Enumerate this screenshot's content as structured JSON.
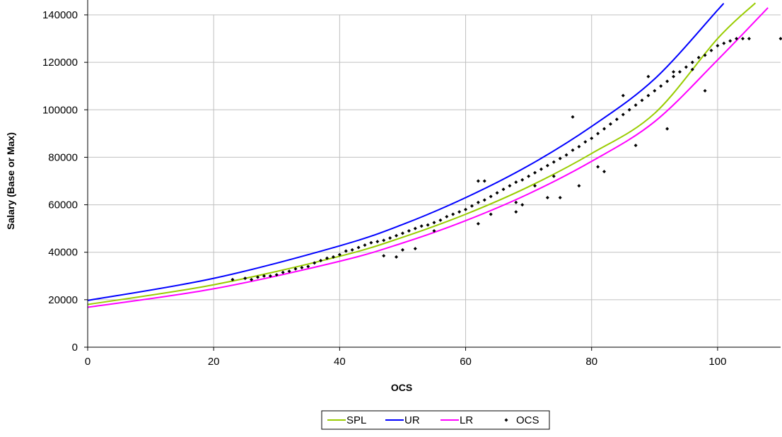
{
  "chart_data": {
    "type": "scatter",
    "title": "",
    "xlabel": "OCS",
    "ylabel": "Salary (Base or Max)",
    "xlim": [
      0,
      110
    ],
    "ylim": [
      0,
      140000
    ],
    "x_ticks": [
      0,
      20,
      40,
      60,
      80,
      100
    ],
    "y_ticks": [
      0,
      20000,
      40000,
      60000,
      80000,
      100000,
      120000,
      140000
    ],
    "grid": true,
    "legend_position": "bottom",
    "series": [
      {
        "name": "SPL",
        "type": "line",
        "color": "#99cc00",
        "x": [
          0,
          20,
          40,
          50,
          60,
          70,
          80,
          90,
          100,
          106
        ],
        "y": [
          18000,
          26300,
          38300,
          46300,
          56000,
          67600,
          81600,
          98500,
          130000,
          145000
        ]
      },
      {
        "name": "UR",
        "type": "line",
        "color": "#0000ff",
        "x": [
          0,
          20,
          40,
          50,
          60,
          70,
          80,
          90,
          100,
          100.5
        ],
        "y": [
          19700,
          29000,
          42700,
          51700,
          63000,
          76500,
          93000,
          113000,
          142000,
          143500
        ]
      },
      {
        "name": "LR",
        "type": "line",
        "color": "#ff00ff",
        "x": [
          0,
          20,
          40,
          50,
          60,
          70,
          80,
          90,
          100,
          108
        ],
        "y": [
          16800,
          24600,
          36200,
          43900,
          53300,
          64600,
          78300,
          95000,
          121000,
          143000
        ]
      },
      {
        "name": "OCS",
        "type": "scatter",
        "color": "#000000",
        "x": [
          23,
          25,
          26,
          27,
          28,
          29,
          30,
          31,
          32,
          33,
          34,
          35,
          36,
          37,
          38,
          39,
          40,
          41,
          42,
          43,
          44,
          45,
          46,
          47,
          48,
          49,
          50,
          51,
          52,
          53,
          54,
          55,
          56,
          57,
          58,
          59,
          60,
          61,
          62,
          63,
          64,
          65,
          66,
          67,
          68,
          69,
          70,
          71,
          72,
          73,
          74,
          75,
          76,
          77,
          78,
          79,
          80,
          81,
          82,
          83,
          84,
          85,
          86,
          87,
          88,
          89,
          90,
          91,
          92,
          93,
          94,
          95,
          96,
          97,
          98,
          99,
          100,
          101,
          102,
          103,
          104,
          105,
          110,
          62,
          63,
          64,
          68,
          71,
          74,
          77,
          85,
          89,
          93,
          96,
          50,
          52,
          68,
          73,
          78,
          82,
          87,
          92,
          98,
          47,
          49,
          55,
          62,
          69,
          75,
          81
        ],
        "y": [
          28500,
          29000,
          28500,
          29500,
          30000,
          30000,
          30500,
          31500,
          32000,
          33000,
          33500,
          34000,
          35500,
          36500,
          37500,
          38000,
          39000,
          40500,
          41000,
          42000,
          43000,
          44000,
          44500,
          45000,
          46000,
          47000,
          48000,
          49000,
          50000,
          51000,
          51500,
          52500,
          53500,
          55000,
          56000,
          57000,
          58000,
          59500,
          61000,
          62000,
          63500,
          65000,
          66500,
          68000,
          69500,
          70500,
          72000,
          73500,
          75000,
          76500,
          78000,
          79500,
          81000,
          83000,
          84500,
          86500,
          88000,
          90000,
          92000,
          94000,
          96000,
          98000,
          100000,
          102000,
          104000,
          106000,
          108000,
          110000,
          112000,
          114000,
          116000,
          118000,
          120000,
          122000,
          123000,
          125000,
          127000,
          128000,
          129000,
          130000,
          130000,
          130000,
          130000,
          70000,
          70000,
          56000,
          61000,
          68000,
          72000,
          97000,
          106000,
          114000,
          116000,
          117000,
          41000,
          41500,
          57000,
          63000,
          68000,
          74000,
          85000,
          92000,
          108000,
          38500,
          38000,
          49000,
          52000,
          60000,
          63000,
          76000
        ]
      }
    ]
  }
}
